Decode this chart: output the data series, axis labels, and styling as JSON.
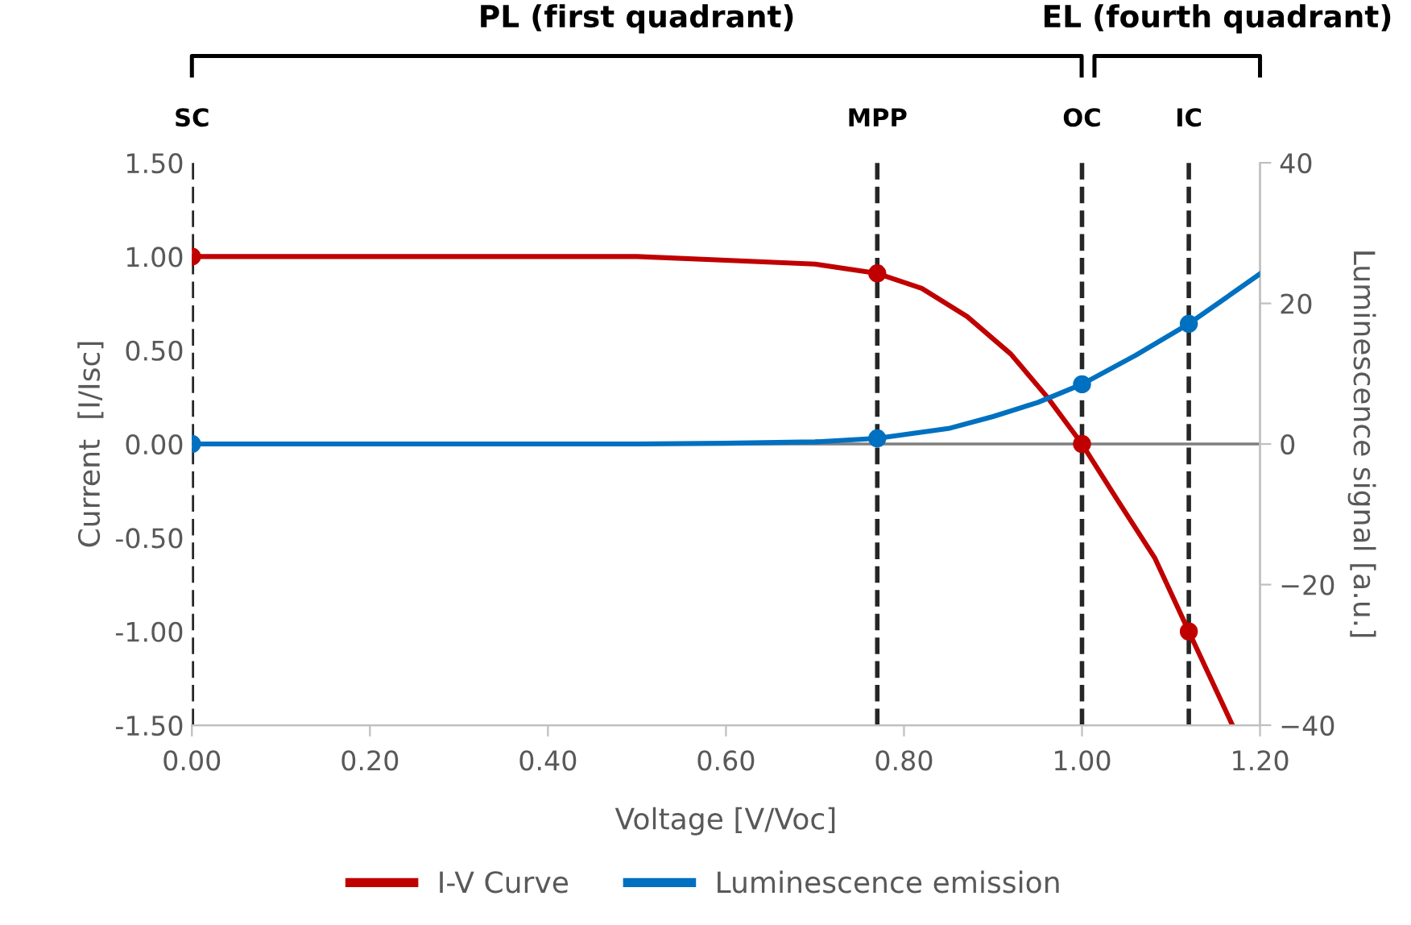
{
  "chart_data": {
    "type": "line",
    "xlabel": "Voltage [V/Voc]",
    "ylabel": "Current  [I/Isc]",
    "y2label": "Luminescence signal [a.u.]",
    "annotations": [
      "PL (first quadrant)",
      "EL (fourth quadrant)"
    ],
    "series": [
      {
        "name": "I-V Curve",
        "color": "#c00000",
        "x": [
          0,
          0.2,
          0.4,
          0.5,
          0.6,
          0.7,
          0.77,
          0.82,
          0.871,
          0.92,
          0.961,
          1.0,
          1.04,
          1.082,
          1.12,
          1.169
        ],
        "values": [
          1.0,
          1.0,
          1.0,
          1.0,
          0.98,
          0.96,
          0.91,
          0.83,
          0.68,
          0.48,
          0.25,
          0,
          -0.3,
          -0.61,
          -1.0,
          -1.5
        ]
      },
      {
        "type": "scatter",
        "color": "#c00000",
        "marker": "circle",
        "x": [
          0,
          0.77,
          1.0,
          1.12
        ],
        "values": [
          1.0,
          0.91,
          0,
          -1.0
        ]
      },
      {
        "name": "Luminescence emission",
        "color": "#0070c0",
        "axis": "y2",
        "x": [
          0,
          0.2,
          0.4,
          0.5,
          0.6,
          0.7,
          0.77,
          0.85,
          0.9,
          0.95,
          1.0,
          1.06,
          1.12,
          1.2
        ],
        "values": [
          0,
          0,
          0,
          0,
          0.1,
          0.3,
          0.8,
          2.2,
          3.9,
          5.9,
          8.5,
          12.6,
          17.1,
          24.2
        ]
      },
      {
        "type": "scatter",
        "color": "#0070c0",
        "marker": "circle",
        "axis": "y2",
        "x": [
          0,
          0.77,
          1.0,
          1.12
        ],
        "values": [
          0,
          0.8,
          8.5,
          17.1
        ]
      }
    ],
    "xlim": [
      0,
      1.2
    ],
    "xticks": [
      {
        "value": 0,
        "label": "0.00"
      },
      {
        "value": 0.2,
        "label": "0.20"
      },
      {
        "value": 0.4,
        "label": "0.40"
      },
      {
        "value": 0.6,
        "label": "0.60"
      },
      {
        "value": 0.8,
        "label": "0.80"
      },
      {
        "value": 1.0,
        "label": "1.00"
      },
      {
        "value": 1.2,
        "label": "1.20"
      }
    ],
    "ylim": [
      -1.5,
      1.5
    ],
    "yticks": [
      {
        "value": -1.5,
        "label": "-1.50"
      },
      {
        "value": -1.0,
        "label": "-1.00"
      },
      {
        "value": -0.5,
        "label": "-0.50"
      },
      {
        "value": 0,
        "label": "0.00"
      },
      {
        "value": 0.5,
        "label": "0.50"
      },
      {
        "value": 1.0,
        "label": "1.00"
      },
      {
        "value": 1.5,
        "label": "1.50"
      }
    ],
    "y2lim": [
      -40,
      40
    ],
    "y2ticks": [
      {
        "value": -40,
        "label": "−40"
      },
      {
        "value": -20,
        "label": "−20"
      },
      0,
      20,
      40
    ],
    "ref_lines": [
      {
        "axis": "x",
        "value": 0,
        "label": "SC",
        "color": "#262626",
        "line_style": "dashed"
      },
      {
        "axis": "x",
        "value": 0.77,
        "label": "MPP",
        "color": "#262626",
        "line_style": "dashed"
      },
      {
        "axis": "x",
        "value": 1.0,
        "label": "OC",
        "color": "#262626",
        "line_style": "dashed"
      },
      {
        "axis": "x",
        "value": 1.12,
        "label": "IC",
        "color": "#262626",
        "line_style": "dashed"
      },
      {
        "axis": "y",
        "value": 0,
        "color": "#7f7f7f",
        "line_style": "solid"
      }
    ],
    "grid": false,
    "legend": "bottom",
    "line_style": "solid",
    "marker": "none"
  }
}
